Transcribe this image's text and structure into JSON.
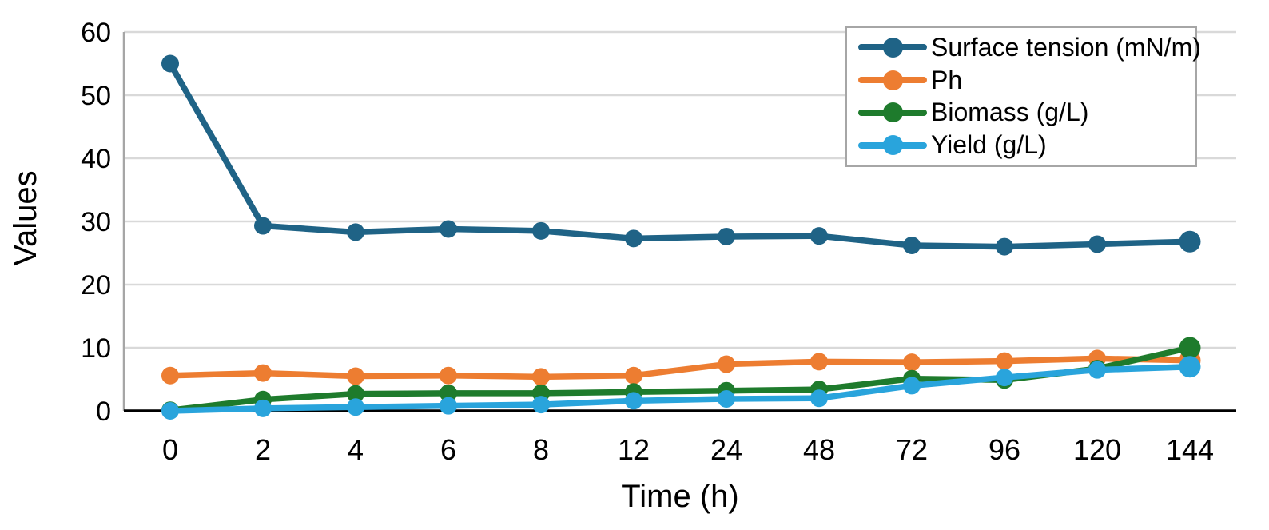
{
  "chart_data": {
    "type": "line",
    "title": "",
    "xlabel": "Time (h)",
    "ylabel": "Values",
    "categories": [
      "0",
      "2",
      "4",
      "6",
      "8",
      "12",
      "24",
      "48",
      "72",
      "96",
      "120",
      "144"
    ],
    "y_ticks": [
      0,
      10,
      20,
      30,
      40,
      50,
      60
    ],
    "ylim": [
      0,
      60
    ],
    "grid": "horizontal-only",
    "legend_position": "top-right-inside",
    "series": [
      {
        "name": "Surface tension (mN/m)",
        "color": "#1f6386",
        "values": [
          55,
          29.3,
          28.3,
          28.8,
          28.5,
          27.3,
          27.6,
          27.7,
          26.2,
          26.0,
          26.4,
          26.8
        ]
      },
      {
        "name": "Ph",
        "color": "#ed7d31",
        "values": [
          5.6,
          6.0,
          5.5,
          5.6,
          5.4,
          5.6,
          7.4,
          7.8,
          7.7,
          7.9,
          8.3,
          8.0
        ]
      },
      {
        "name": "Biomass (g/L)",
        "color": "#1e7b2c",
        "values": [
          0.1,
          1.8,
          2.7,
          2.8,
          2.8,
          3.0,
          3.2,
          3.4,
          5.1,
          4.9,
          6.7,
          10.0
        ]
      },
      {
        "name": "Yield (g/L)",
        "color": "#29a4dc",
        "values": [
          0.0,
          0.4,
          0.6,
          0.8,
          1.0,
          1.6,
          1.9,
          2.0,
          4.0,
          5.3,
          6.5,
          7.0
        ]
      }
    ],
    "colors": {
      "gridline": "#d9d9d9",
      "x_axis": "#000000",
      "y_axis": "#a6a6a6",
      "legend_border": "#a6a6a6",
      "background": "#ffffff"
    }
  }
}
